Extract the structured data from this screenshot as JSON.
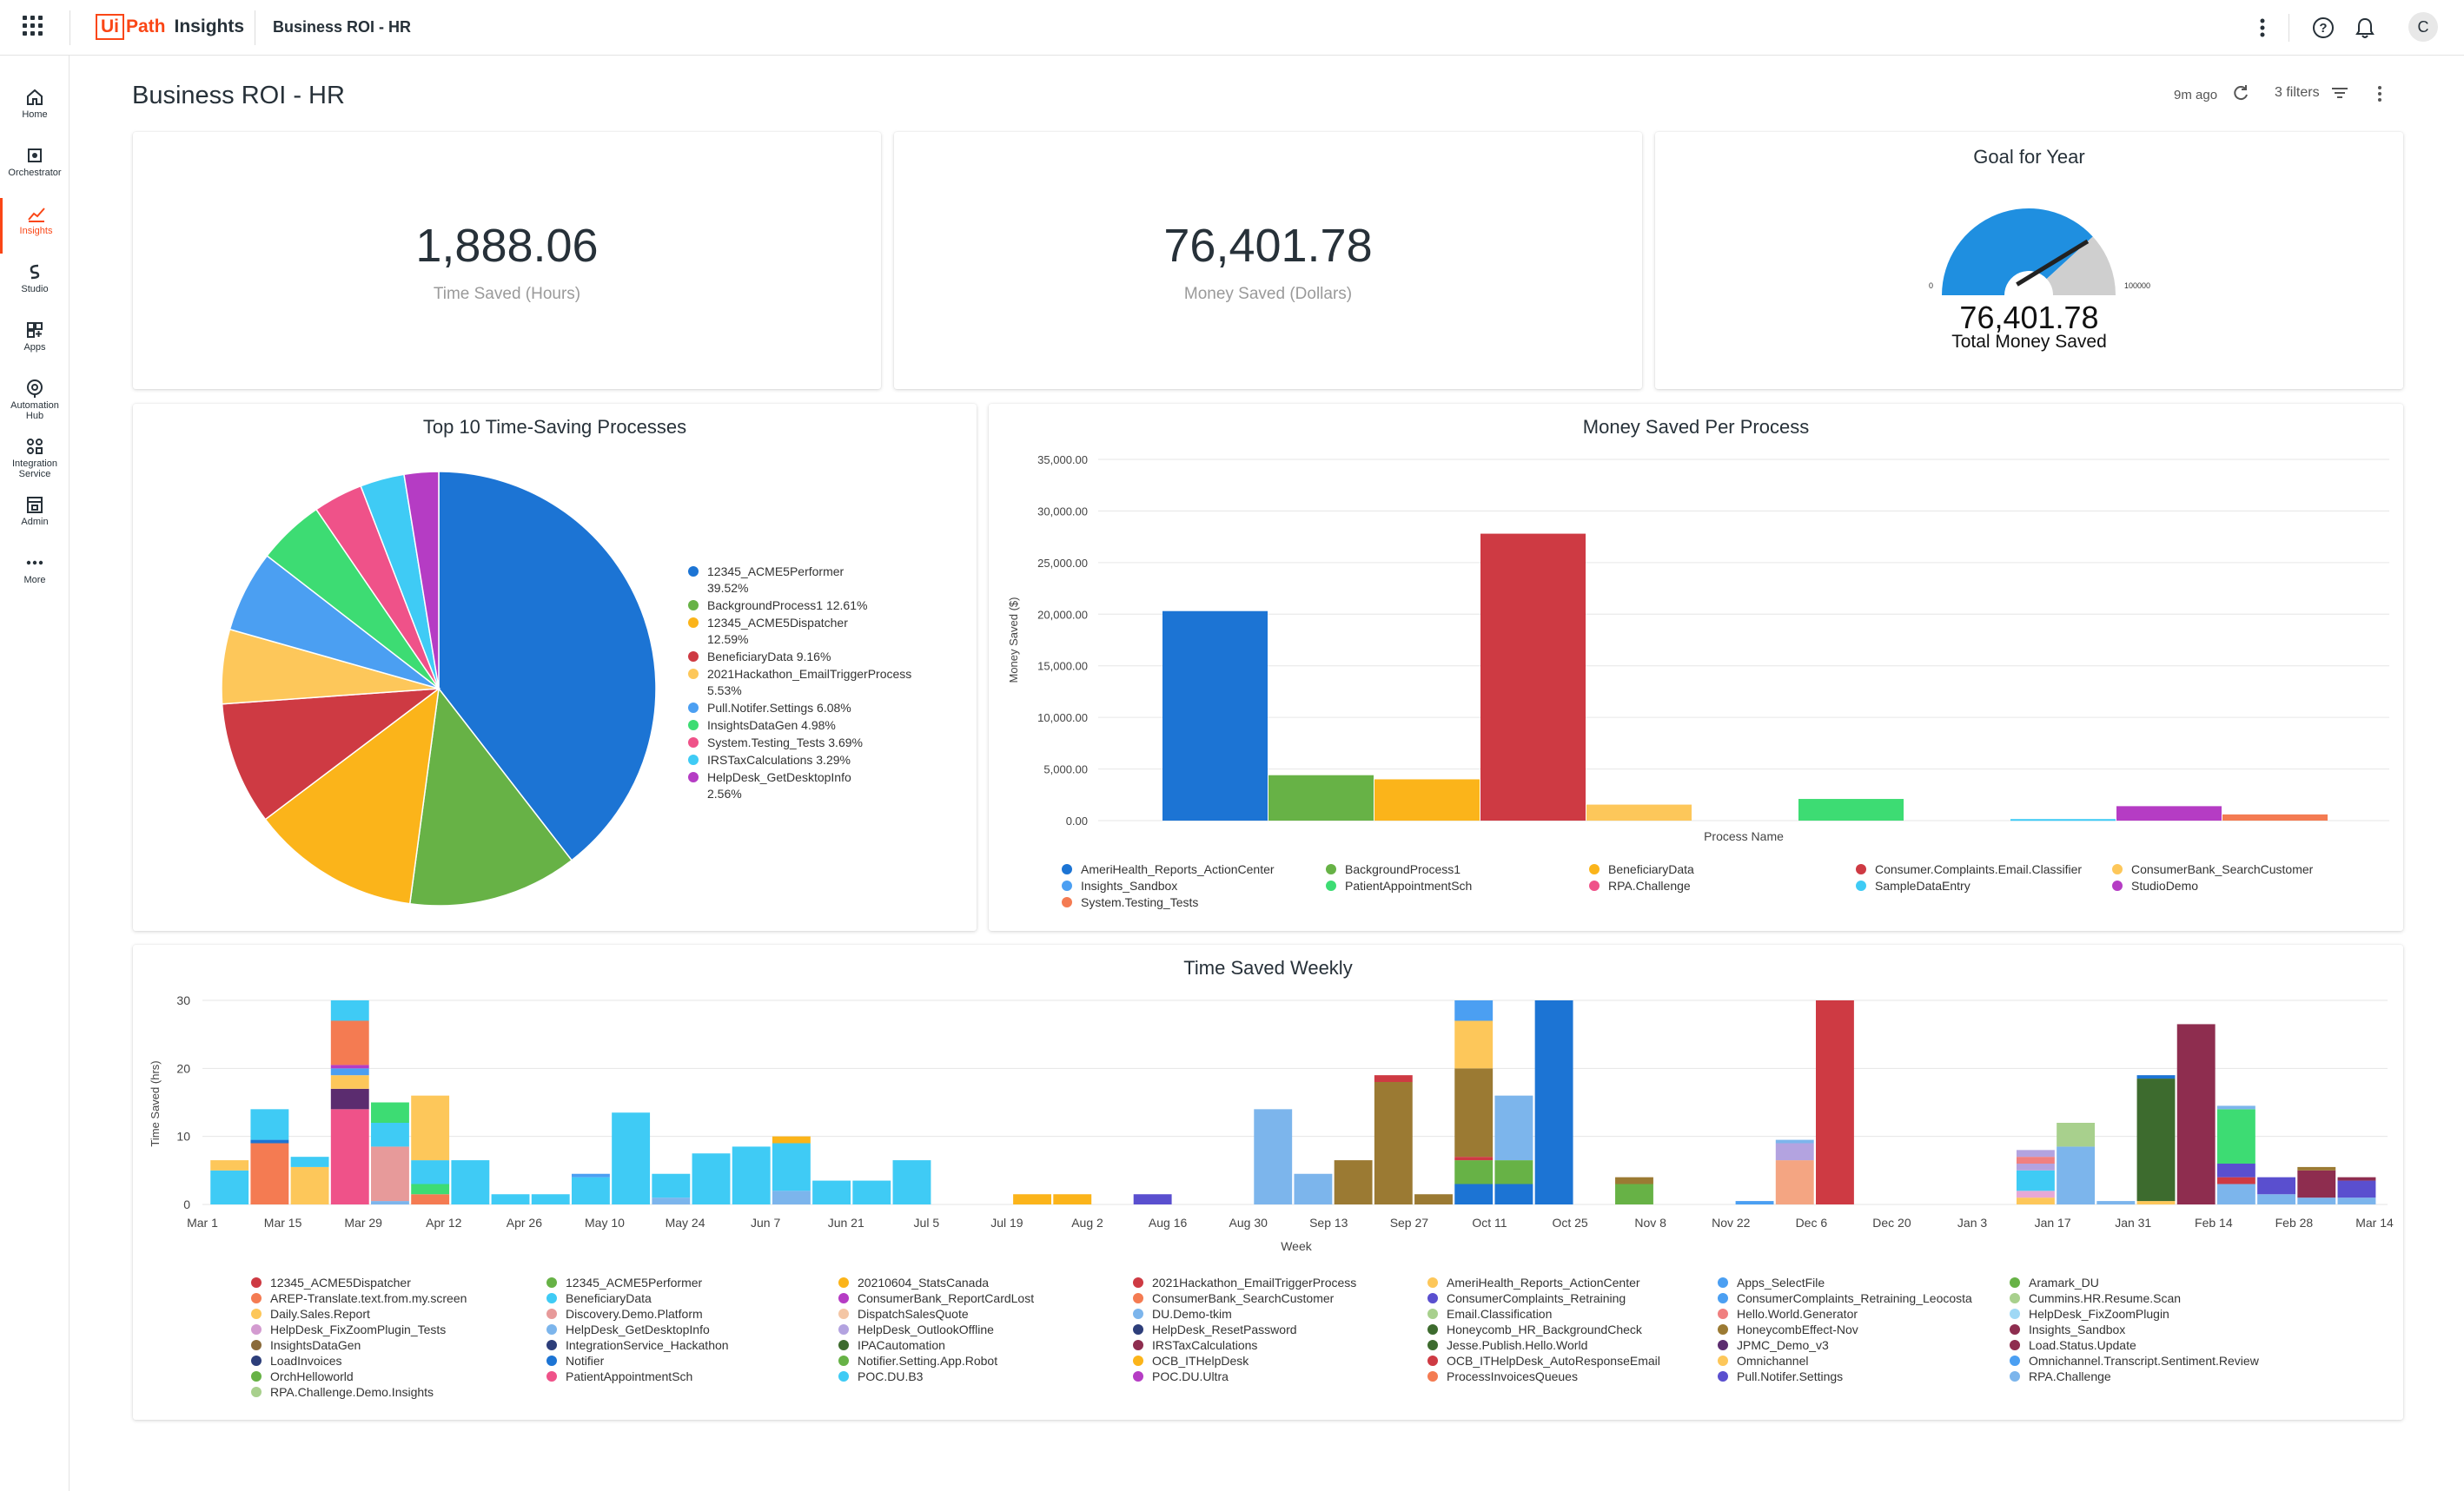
{
  "topbar": {
    "product": "Insights",
    "logo_box": "Ui",
    "logo_rest": "Path",
    "breadcrumb": "Business ROI - HR",
    "avatar": "C"
  },
  "sidebar": {
    "items": [
      {
        "label": "Home",
        "icon": "home-icon"
      },
      {
        "label": "Orchestrator",
        "icon": "orchestrator-icon"
      },
      {
        "label": "Insights",
        "icon": "insights-icon",
        "active": true
      },
      {
        "label": "Studio",
        "icon": "studio-icon"
      },
      {
        "label": "Apps",
        "icon": "apps-icon"
      },
      {
        "label": "Automation Hub",
        "icon": "automation-hub-icon"
      },
      {
        "label": "Integration Service",
        "icon": "integration-service-icon"
      },
      {
        "label": "Admin",
        "icon": "admin-icon"
      },
      {
        "label": "More",
        "icon": "more-icon"
      }
    ]
  },
  "header": {
    "title": "Business ROI - HR",
    "updated": "9m ago",
    "filters": "3 filters"
  },
  "kpis": {
    "time_saved": {
      "value": "1,888.06",
      "label": "Time Saved (Hours)"
    },
    "money_saved": {
      "value": "76,401.78",
      "label": "Money Saved (Dollars)"
    }
  },
  "gauge": {
    "title": "Goal for Year",
    "min": "0",
    "max": "100000",
    "value_num": 76401.78,
    "value": "76,401.78",
    "label": "Total Money Saved",
    "color": "#1f8fe0"
  },
  "pie": {
    "title": "Top 10 Time-Saving Processes",
    "chart_data": {
      "type": "pie",
      "slices": [
        {
          "name": "12345_ACME5Performer",
          "pct": "39.52%",
          "value": 39.52,
          "color": "#1c74d4"
        },
        {
          "name": "BackgroundProcess1",
          "pct": "12.61%",
          "value": 12.61,
          "color": "#67b246"
        },
        {
          "name": "12345_ACME5Dispatcher",
          "pct": "12.59%",
          "value": 12.59,
          "color": "#fbb41a"
        },
        {
          "name": "BeneficiaryData",
          "pct": "9.16%",
          "value": 9.16,
          "color": "#ce3a43"
        },
        {
          "name": "2021Hackathon_EmailTriggerProcess",
          "pct": "5.53%",
          "value": 5.53,
          "color": "#fdc75a"
        },
        {
          "name": "Pull.Notifer.Settings",
          "pct": "6.08%",
          "value": 6.08,
          "color": "#4b9ff2"
        },
        {
          "name": "InsightsDataGen",
          "pct": "4.98%",
          "value": 4.98,
          "color": "#3ddc73"
        },
        {
          "name": "System.Testing_Tests",
          "pct": "3.69%",
          "value": 3.69,
          "color": "#ef5289"
        },
        {
          "name": "IRSTaxCalculations",
          "pct": "3.29%",
          "value": 3.29,
          "color": "#3fcbf5"
        },
        {
          "name": "HelpDesk_GetDesktopInfo",
          "pct": "2.56%",
          "value": 2.56,
          "color": "#b53cc4"
        }
      ]
    },
    "legend_items": [
      {
        "text": "12345_ACME5Performer",
        "text2": "39.52%",
        "color": "#1c74d4"
      },
      {
        "text": "BackgroundProcess1 12.61%",
        "text2": "",
        "color": "#67b246"
      },
      {
        "text": "12345_ACME5Dispatcher",
        "text2": "12.59%",
        "color": "#fbb41a"
      },
      {
        "text": "BeneficiaryData 9.16%",
        "text2": "",
        "color": "#ce3a43"
      },
      {
        "text": "2021Hackathon_EmailTriggerProcess",
        "text2": "5.53%",
        "color": "#fdc75a"
      },
      {
        "text": "Pull.Notifer.Settings 6.08%",
        "text2": "",
        "color": "#4b9ff2"
      },
      {
        "text": "InsightsDataGen 4.98%",
        "text2": "",
        "color": "#3ddc73"
      },
      {
        "text": "System.Testing_Tests 3.69%",
        "text2": "",
        "color": "#ef5289"
      },
      {
        "text": "IRSTaxCalculations 3.29%",
        "text2": "",
        "color": "#3fcbf5"
      },
      {
        "text": "HelpDesk_GetDesktopInfo",
        "text2": "2.56%",
        "color": "#b53cc4"
      }
    ]
  },
  "money": {
    "title": "Money Saved Per Process",
    "chart_data": {
      "type": "bar",
      "xlabel": "Process Name",
      "ylabel": "Money Saved ($)",
      "ylim": [
        0,
        35000
      ],
      "yticks": [
        "0.00",
        "5,000.00",
        "10,000.00",
        "15,000.00",
        "20,000.00",
        "25,000.00",
        "30,000.00",
        "35,000.00"
      ],
      "series": [
        {
          "name": "AmeriHealth_Reports_ActionCenter",
          "value": 20300,
          "color": "#1c74d4"
        },
        {
          "name": "BackgroundProcess1",
          "value": 4400,
          "color": "#67b246"
        },
        {
          "name": "BeneficiaryData",
          "value": 4000,
          "color": "#fbb41a"
        },
        {
          "name": "Consumer.Complaints.Email.Classifier",
          "value": 27800,
          "color": "#ce3a43"
        },
        {
          "name": "ConsumerBank_SearchCustomer",
          "value": 1550,
          "color": "#fdc75a"
        },
        {
          "name": "Insights_Sandbox",
          "value": 0,
          "color": "#4b9ff2"
        },
        {
          "name": "PatientAppointmentSch",
          "value": 2100,
          "color": "#3ddc73"
        },
        {
          "name": "RPA.Challenge",
          "value": 0,
          "color": "#ef5289"
        },
        {
          "name": "SampleDataEntry",
          "value": 150,
          "color": "#3fcbf5"
        },
        {
          "name": "StudioDemo",
          "value": 1400,
          "color": "#b53cc4"
        },
        {
          "name": "System.Testing_Tests",
          "value": 600,
          "color": "#f47b52"
        }
      ]
    }
  },
  "weekly": {
    "title": "Time Saved Weekly",
    "chart_data": {
      "type": "bar",
      "stacked": true,
      "xlabel": "Week",
      "ylabel": "Time Saved (hrs)",
      "ylim": [
        0,
        30
      ],
      "yticks": [
        "0",
        "10",
        "20",
        "30"
      ],
      "xticks": [
        "Mar 1",
        "Mar 15",
        "Mar 29",
        "Apr 12",
        "Apr 26",
        "May 10",
        "May 24",
        "Jun 7",
        "Jun 21",
        "Jul 5",
        "Jul 19",
        "Aug 2",
        "Aug 16",
        "Aug 30",
        "Sep 13",
        "Sep 27",
        "Oct 11",
        "Oct 25",
        "Nov 8",
        "Nov 22",
        "Dec 6",
        "Dec 20",
        "Jan 3",
        "Jan 17",
        "Jan 31",
        "Feb 14",
        "Feb 28",
        "Mar 14"
      ],
      "weeks": [
        [
          [
            "#3fcbf5",
            5
          ],
          [
            "#fdc75a",
            1.5
          ]
        ],
        [
          [
            "#f47b52",
            9
          ],
          [
            "#1c74d4",
            0.5
          ],
          [
            "#3fcbf5",
            4.5
          ]
        ],
        [
          [
            "#fdc75a",
            5.5
          ],
          [
            "#3fcbf5",
            1.5
          ]
        ],
        [
          [
            "#ef5289",
            14
          ],
          [
            "#5b2c6f",
            3
          ],
          [
            "#fdc75a",
            2
          ],
          [
            "#4b9ff2",
            1
          ],
          [
            "#b53cc4",
            0.5
          ],
          [
            "#f47b52",
            6.5
          ],
          [
            "#3fcbf5",
            3
          ]
        ],
        [
          [
            "#7cb5ec",
            0.5
          ],
          [
            "#e79a9a",
            8
          ],
          [
            "#3fcbf5",
            3.5
          ],
          [
            "#3ddc73",
            3
          ]
        ],
        [
          [
            "#f47b52",
            1.5
          ],
          [
            "#3ddc73",
            1.5
          ],
          [
            "#3fcbf5",
            3.5
          ],
          [
            "#fdc75a",
            9.5
          ]
        ],
        [
          [
            "#3fcbf5",
            6.5
          ]
        ],
        [
          [
            "#3fcbf5",
            1.5
          ]
        ],
        [
          [
            "#3fcbf5",
            1.5
          ]
        ],
        [
          [
            "#3fcbf5",
            4
          ],
          [
            "#4b9ff2",
            0.5
          ]
        ],
        [
          [
            "#3fcbf5",
            13.5
          ]
        ],
        [
          [
            "#7cb5ec",
            1
          ],
          [
            "#3fcbf5",
            3.5
          ]
        ],
        [
          [
            "#3fcbf5",
            7.5
          ]
        ],
        [
          [
            "#3fcbf5",
            8.5
          ]
        ],
        [
          [
            "#7cb5ec",
            2
          ],
          [
            "#3fcbf5",
            7
          ],
          [
            "#fbb41a",
            1
          ]
        ],
        [
          [
            "#3fcbf5",
            3.5
          ]
        ],
        [
          [
            "#3fcbf5",
            3.5
          ]
        ],
        [
          [
            "#3fcbf5",
            6.5
          ]
        ],
        [],
        [],
        [
          [
            "#fbb41a",
            1.5
          ]
        ],
        [
          [
            "#fbb41a",
            1.5
          ]
        ],
        [],
        [
          [
            "#5a4fcf",
            1.5
          ]
        ],
        [],
        [],
        [
          [
            "#7cb5ec",
            14
          ]
        ],
        [
          [
            "#7cb5ec",
            4.5
          ]
        ],
        [
          [
            "#9b7a33",
            6.5
          ]
        ],
        [
          [
            "#9b7a33",
            18
          ],
          [
            "#ce3a43",
            1
          ]
        ],
        [
          [
            "#9b7a33",
            1.5
          ]
        ],
        [
          [
            "#1c74d4",
            3
          ],
          [
            "#67b246",
            3.5
          ],
          [
            "#ce3a43",
            0.5
          ],
          [
            "#9b7a33",
            13
          ],
          [
            "#fdc75a",
            7
          ],
          [
            "#4b9ff2",
            3.5
          ]
        ],
        [
          [
            "#1c74d4",
            3
          ],
          [
            "#67b246",
            3.5
          ],
          [
            "#7cb5ec",
            9.5
          ]
        ],
        [
          [
            "#1c74d4",
            30
          ]
        ],
        [],
        [
          [
            "#67b246",
            3
          ],
          [
            "#9b7a33",
            1
          ]
        ],
        [],
        [],
        [
          [
            "#4b9ff2",
            0.5
          ]
        ],
        [
          [
            "#f4a582",
            6.5
          ],
          [
            "#b3a3e0",
            2.5
          ],
          [
            "#7cb5ec",
            0.5
          ]
        ],
        [
          [
            "#ce3a43",
            30
          ]
        ],
        [],
        [],
        [],
        [],
        [
          [
            "#fdc75a",
            1
          ],
          [
            "#e7a8d6",
            1
          ],
          [
            "#3fcbf5",
            3
          ],
          [
            "#b3a3e0",
            1
          ],
          [
            "#f08080",
            1
          ],
          [
            "#b3a3e0",
            1
          ]
        ],
        [
          [
            "#7cb5ec",
            8.5
          ],
          [
            "#a8d08d",
            3.5
          ]
        ],
        [
          [
            "#7cb5ec",
            0.5
          ]
        ],
        [
          [
            "#fdc75a",
            0.5
          ],
          [
            "#3d6b2e",
            18
          ],
          [
            "#1c74d4",
            0.5
          ]
        ],
        [
          [
            "#8e2d4f",
            26.5
          ]
        ],
        [
          [
            "#7cb5ec",
            3
          ],
          [
            "#ce3a43",
            1
          ],
          [
            "#5a4fcf",
            2
          ],
          [
            "#3ddc73",
            8
          ],
          [
            "#7cb5ec",
            0.5
          ]
        ],
        [
          [
            "#7cb5ec",
            1.5
          ],
          [
            "#5a4fcf",
            2.5
          ]
        ],
        [
          [
            "#7cb5ec",
            1
          ],
          [
            "#8e2d4f",
            4
          ],
          [
            "#9b7a33",
            0.5
          ]
        ],
        [
          [
            "#7cb5ec",
            1
          ],
          [
            "#5a4fcf",
            2.5
          ],
          [
            "#8e2d4f",
            0.5
          ]
        ]
      ],
      "legend": [
        {
          "name": "12345_ACME5Dispatcher",
          "color": "#ce3a43"
        },
        {
          "name": "12345_ACME5Performer",
          "color": "#67b246"
        },
        {
          "name": "20210604_StatsCanada",
          "color": "#fbb41a"
        },
        {
          "name": "2021Hackathon_EmailTriggerProcess",
          "color": "#ce3a43"
        },
        {
          "name": "AmeriHealth_Reports_ActionCenter",
          "color": "#fdc75a"
        },
        {
          "name": "Apps_SelectFile",
          "color": "#4b9ff2"
        },
        {
          "name": "Aramark_DU",
          "color": "#67b246"
        },
        {
          "name": "AREP-Translate.text.from.my.screen",
          "color": "#f47b52"
        },
        {
          "name": "BeneficiaryData",
          "color": "#3fcbf5"
        },
        {
          "name": "ConsumerBank_ReportCardLost",
          "color": "#b53cc4"
        },
        {
          "name": "ConsumerBank_SearchCustomer",
          "color": "#f47b52"
        },
        {
          "name": "ConsumerComplaints_Retraining",
          "color": "#5a4fcf"
        },
        {
          "name": "ConsumerComplaints_Retraining_Leocosta",
          "color": "#4b9ff2"
        },
        {
          "name": "Cummins.HR.Resume.Scan",
          "color": "#a8d08d"
        },
        {
          "name": "Daily.Sales.Report",
          "color": "#fdc75a"
        },
        {
          "name": "Discovery.Demo.Platform",
          "color": "#e79a9a"
        },
        {
          "name": "DispatchSalesQuote",
          "color": "#f4c6a5"
        },
        {
          "name": "DU.Demo-tkim",
          "color": "#7cb5ec"
        },
        {
          "name": "Email.Classification",
          "color": "#a8d08d"
        },
        {
          "name": "Hello.World.Generator",
          "color": "#f08080"
        },
        {
          "name": "HelpDesk_FixZoomPlugin",
          "color": "#9fd8f5"
        },
        {
          "name": "HelpDesk_FixZoomPlugin_Tests",
          "color": "#d39bd0"
        },
        {
          "name": "HelpDesk_GetDesktopInfo",
          "color": "#7cb5ec"
        },
        {
          "name": "HelpDesk_OutlookOffline",
          "color": "#b3a3e0"
        },
        {
          "name": "HelpDesk_ResetPassword",
          "color": "#2d3e7a"
        },
        {
          "name": "Honeycomb_HR_BackgroundCheck",
          "color": "#3d6b2e"
        },
        {
          "name": "HoneycombEffect-Nov",
          "color": "#9b7a33"
        },
        {
          "name": "Insights_Sandbox",
          "color": "#8e2d4f"
        },
        {
          "name": "InsightsDataGen",
          "color": "#8a6a3a"
        },
        {
          "name": "IntegrationService_Hackathon",
          "color": "#2d3e7a"
        },
        {
          "name": "IPACautomation",
          "color": "#3d6b2e"
        },
        {
          "name": "IRSTaxCalculations",
          "color": "#8e2d4f"
        },
        {
          "name": "Jesse.Publish.Hello.World",
          "color": "#3d6b2e"
        },
        {
          "name": "JPMC_Demo_v3",
          "color": "#5b2c6f"
        },
        {
          "name": "Load.Status.Update",
          "color": "#8e2d4f"
        },
        {
          "name": "LoadInvoices",
          "color": "#2d3e7a"
        },
        {
          "name": "Notifier",
          "color": "#1c74d4"
        },
        {
          "name": "Notifier.Setting.App.Robot",
          "color": "#67b246"
        },
        {
          "name": "OCB_ITHelpDesk",
          "color": "#fbb41a"
        },
        {
          "name": "OCB_ITHelpDesk_AutoResponseEmail",
          "color": "#ce3a43"
        },
        {
          "name": "Omnichannel",
          "color": "#fdc75a"
        },
        {
          "name": "Omnichannel.Transcript.Sentiment.Review",
          "color": "#4b9ff2"
        },
        {
          "name": "OrchHelloworld",
          "color": "#67b246"
        },
        {
          "name": "PatientAppointmentSch",
          "color": "#ef5289"
        },
        {
          "name": "POC.DU.B3",
          "color": "#3fcbf5"
        },
        {
          "name": "POC.DU.Ultra",
          "color": "#b53cc4"
        },
        {
          "name": "ProcessInvoicesQueues",
          "color": "#f47b52"
        },
        {
          "name": "Pull.Notifer.Settings",
          "color": "#5a4fcf"
        },
        {
          "name": "RPA.Challenge",
          "color": "#7cb5ec"
        },
        {
          "name": "RPA.Challenge.Demo.Insights",
          "color": "#a8d08d"
        }
      ]
    }
  }
}
